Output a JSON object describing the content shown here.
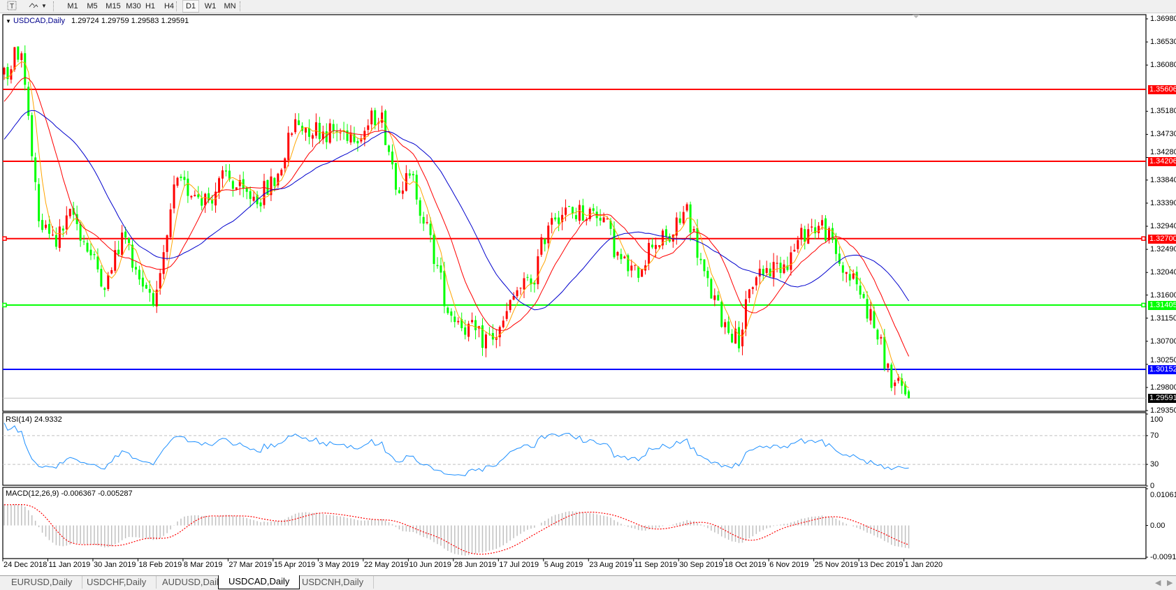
{
  "toolbar": {
    "text_tool_icon": "text-tool-icon",
    "arrows_tool_icon": "arrows-tool-icon",
    "timeframes": [
      "M1",
      "M5",
      "M15",
      "M30",
      "H1",
      "H4",
      "D1",
      "W1",
      "MN"
    ],
    "active_timeframe": "D1"
  },
  "chart": {
    "symbol_label": "USDCAD,Daily",
    "ohlc": "1.29724 1.29759 1.29583 1.29591",
    "price_ticks": [
      "1.36980",
      "1.36530",
      "1.36080",
      "1.35180",
      "1.34730",
      "1.34280",
      "1.33840",
      "1.33390",
      "1.32940",
      "1.32490",
      "1.32040",
      "1.31600",
      "1.31150",
      "1.30700",
      "1.30250",
      "1.29800",
      "1.29350"
    ],
    "levels": [
      {
        "price": "1.35606",
        "color": "#ff0000"
      },
      {
        "price": "1.34206",
        "color": "#ff0000"
      },
      {
        "price": "1.32700",
        "color": "#ff0000"
      },
      {
        "price": "1.31405",
        "color": "#00ff00"
      },
      {
        "price": "1.30152",
        "color": "#0000ff"
      }
    ],
    "current_price": "1.29591",
    "bull_color": "#ff0000",
    "bear_color": "#00ff00",
    "ma_colors": {
      "fast": "#ffa500",
      "medium": "#ff0000",
      "slow": "#0000cd"
    }
  },
  "rsi": {
    "label": "RSI(14) 24.9332",
    "ticks": [
      "100",
      "70",
      "30",
      "0"
    ],
    "color": "#1e90ff"
  },
  "macd": {
    "label": "MACD(12,26,9) -0.006367 -0.005287",
    "ticks": [
      "0.010615",
      "0.00",
      "-0.009181"
    ],
    "histogram_color": "#c0c0c0",
    "signal_color": "#ff0000"
  },
  "date_labels": [
    "24 Dec 2018",
    "11 Jan 2019",
    "30 Jan 2019",
    "18 Feb 2019",
    "8 Mar 2019",
    "27 Mar 2019",
    "15 Apr 2019",
    "3 May 2019",
    "22 May 2019",
    "10 Jun 2019",
    "28 Jun 2019",
    "17 Jul 2019",
    "5 Aug 2019",
    "23 Aug 2019",
    "11 Sep 2019",
    "30 Sep 2019",
    "18 Oct 2019",
    "6 Nov 2019",
    "25 Nov 2019",
    "13 Dec 2019",
    "1 Jan 2020"
  ],
  "tabs": [
    "EURUSD,Daily",
    "USDCHF,Daily",
    "AUDUSD,Daily",
    "USDCAD,Daily",
    "USDCNH,Daily"
  ],
  "active_tab": "USDCAD,Daily",
  "chart_data": {
    "type": "candlestick",
    "symbol": "USDCAD",
    "period": "Daily",
    "x_range": [
      "24 Dec 2018",
      "1 Jan 2020"
    ],
    "ylim": [
      1.2935,
      1.3698
    ],
    "approx_closes": [
      1.3587,
      1.3646,
      1.33,
      1.3263,
      1.332,
      1.324,
      1.318,
      1.3281,
      1.319,
      1.315,
      1.3372,
      1.3365,
      1.3347,
      1.3393,
      1.3355,
      1.3352,
      1.3389,
      1.3494,
      1.3486,
      1.3478,
      1.3477,
      1.3478,
      1.352,
      1.338,
      1.338,
      1.326,
      1.3133,
      1.31,
      1.3074,
      1.3084,
      1.3167,
      1.3189,
      1.332,
      1.332,
      1.332,
      1.332,
      1.323,
      1.32,
      1.3266,
      1.3269,
      1.333,
      1.3197,
      1.3117,
      1.307,
      1.3204,
      1.3211,
      1.3232,
      1.3289,
      1.3295,
      1.3219,
      1.3177,
      1.3098,
      1.299,
      1.296
    ],
    "last_bar": {
      "open": 1.29724,
      "high": 1.29759,
      "low": 1.29583,
      "close": 1.29591
    }
  }
}
